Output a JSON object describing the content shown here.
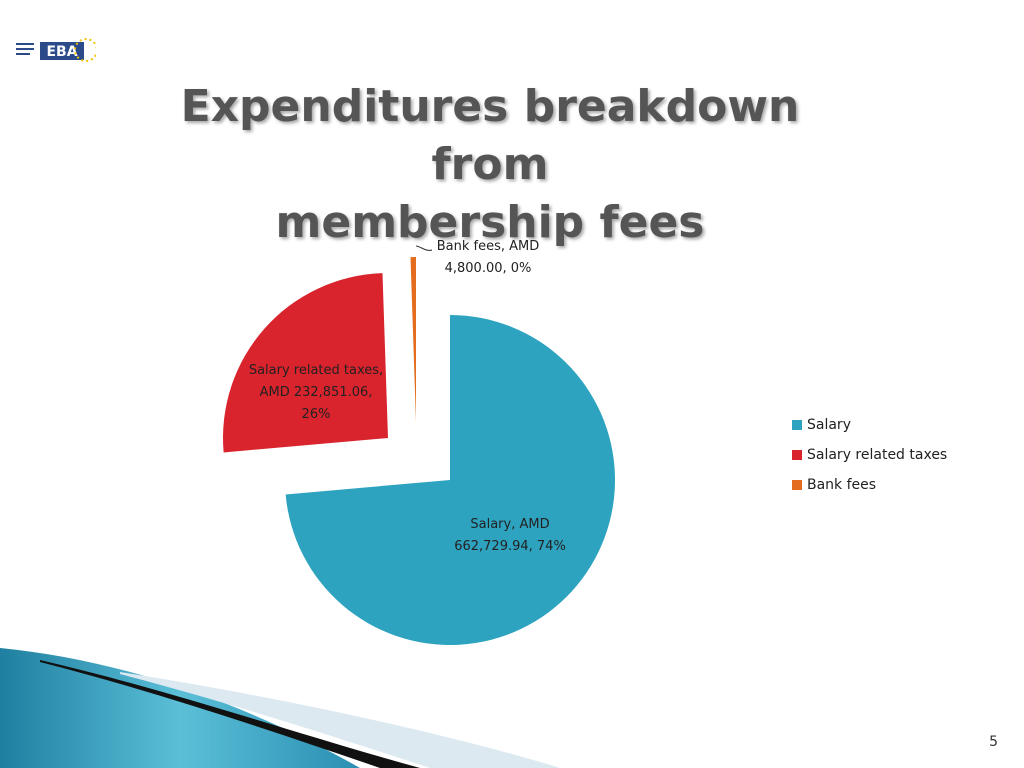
{
  "slide": {
    "title_line1": "Expenditures breakdown from",
    "title_line2": "membership fees",
    "page_number": "5",
    "logo_text": "EBA"
  },
  "chart_data": {
    "type": "pie",
    "categories": [
      "Salary",
      "Salary related taxes",
      "Bank fees"
    ],
    "values": [
      662729.94,
      232851.06,
      4800.0
    ],
    "colors": [
      "#2ea3c0",
      "#d9232d",
      "#e36c1e"
    ],
    "data_labels": [
      [
        "Salary, AMD",
        "662,729.94, 74%"
      ],
      [
        "Salary related taxes,",
        "AMD 232,851.06,",
        "26%"
      ],
      [
        "Bank fees, AMD",
        "4,800.00, 0%"
      ]
    ],
    "legend": [
      "Salary",
      "Salary related taxes",
      "Bank fees"
    ],
    "legend_placement": "right",
    "exploded": true
  }
}
